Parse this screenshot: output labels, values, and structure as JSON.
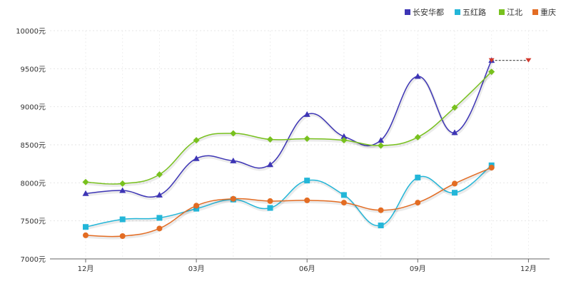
{
  "chart_data": {
    "type": "line",
    "title": "",
    "xlabel": "",
    "ylabel": "",
    "ylim": [
      7000,
      10000
    ],
    "y_ticks": [
      7000,
      7500,
      8000,
      8500,
      9000,
      9500,
      10000
    ],
    "y_tick_suffix": "元",
    "x_count": 13,
    "x_tick_labels": [
      {
        "index": 0,
        "label": "12月"
      },
      {
        "index": 3,
        "label": "03月"
      },
      {
        "index": 6,
        "label": "06月"
      },
      {
        "index": 9,
        "label": "09月"
      },
      {
        "index": 12,
        "label": "12月"
      }
    ],
    "legend_position": "top-right",
    "series": [
      {
        "name": "长安华都",
        "color": "#3d35b5",
        "marker": "triangle",
        "values": [
          7860,
          7900,
          7840,
          8320,
          8290,
          8240,
          8900,
          8610,
          8560,
          9400,
          8660,
          9610,
          null
        ]
      },
      {
        "name": "五红路",
        "color": "#23b6d8",
        "marker": "square",
        "values": [
          7420,
          7520,
          7540,
          7660,
          7780,
          7670,
          8030,
          7840,
          7440,
          8070,
          7870,
          8230,
          null
        ]
      },
      {
        "name": "江北",
        "color": "#78c11e",
        "marker": "diamond",
        "values": [
          8010,
          7990,
          8110,
          8560,
          8650,
          8570,
          8580,
          8560,
          8490,
          8600,
          8990,
          9460,
          null
        ]
      },
      {
        "name": "重庆",
        "color": "#e36c23",
        "marker": "circle",
        "values": [
          7310,
          7300,
          7400,
          7700,
          7790,
          7760,
          7770,
          7740,
          7640,
          7740,
          7990,
          8200,
          null
        ]
      }
    ],
    "extension": {
      "from_index": 11,
      "to_index": 12,
      "value": 9610,
      "color": "#d2382c"
    }
  }
}
